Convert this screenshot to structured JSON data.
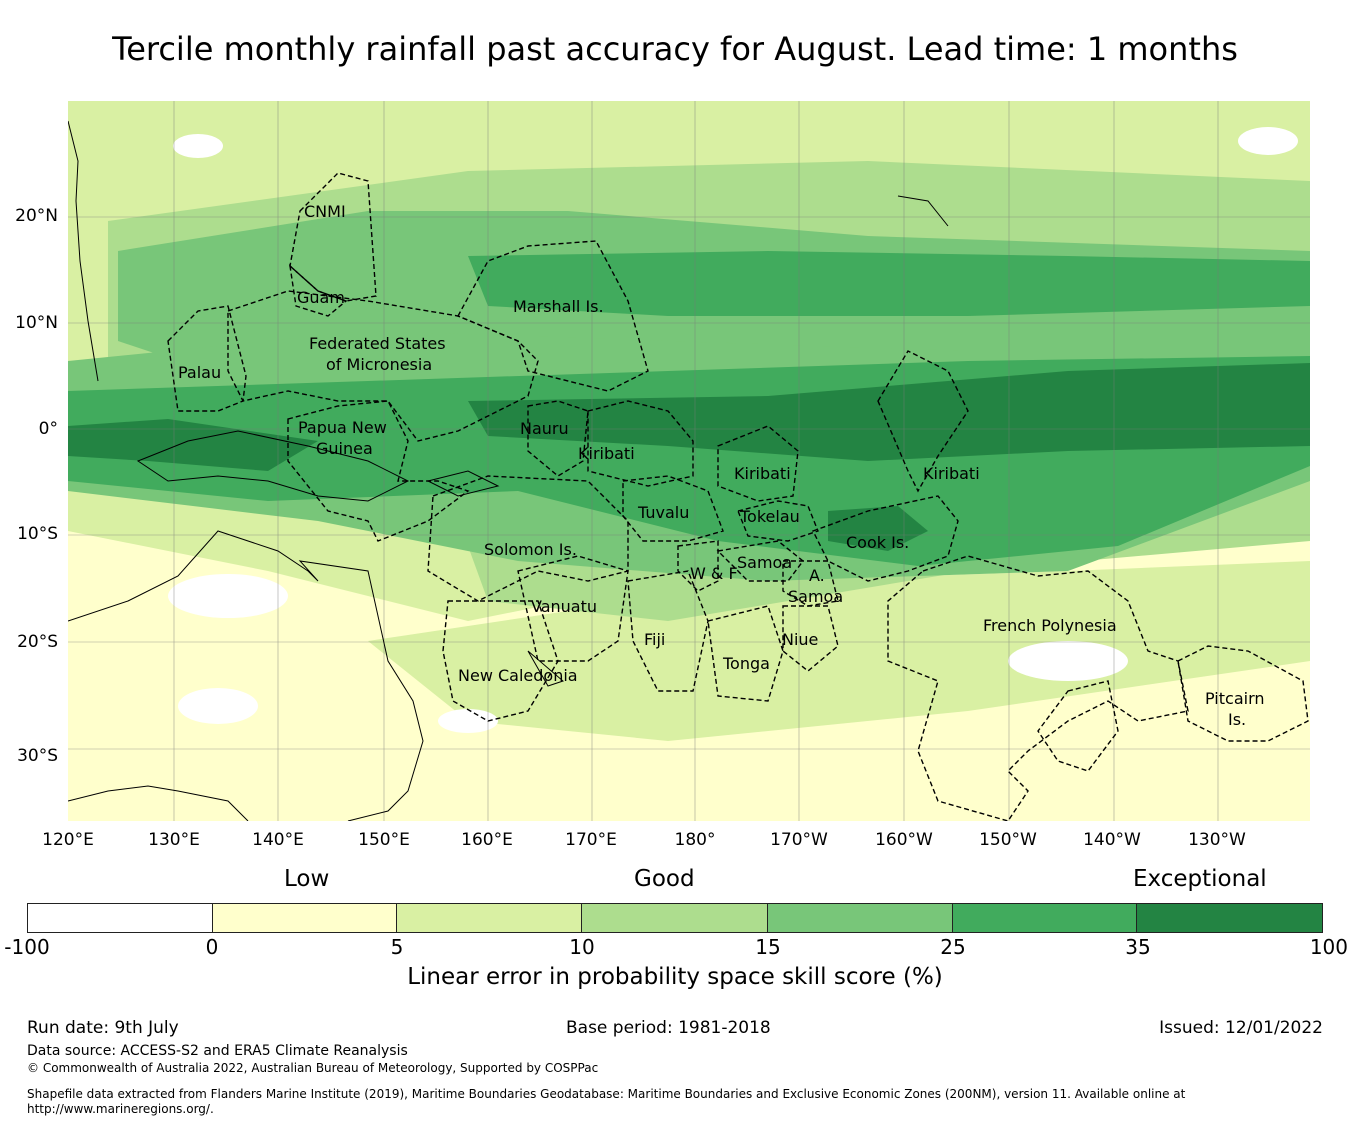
{
  "title": "Tercile monthly rainfall past accuracy for August. Lead time: 1 months",
  "map": {
    "lat_labels": [
      "20°N",
      "10°N",
      "0°",
      "10°S",
      "20°S",
      "30°S"
    ],
    "lon_labels": [
      "120°E",
      "130°E",
      "140°E",
      "150°E",
      "160°E",
      "170°E",
      "180°",
      "170°W",
      "160°W",
      "150°W",
      "140°W",
      "130°W"
    ],
    "regions": [
      {
        "name": "CNMI"
      },
      {
        "name": "Guam"
      },
      {
        "name": "Marshall Is."
      },
      {
        "name": "Federated States"
      },
      {
        "name": "of Micronesia"
      },
      {
        "name": "Palau"
      },
      {
        "name": "Papua New"
      },
      {
        "name": "Guinea"
      },
      {
        "name": "Nauru"
      },
      {
        "name": "Kiribati"
      },
      {
        "name": "Kiribati"
      },
      {
        "name": "Kiribati"
      },
      {
        "name": "Tuvalu"
      },
      {
        "name": "Tokelau"
      },
      {
        "name": "Cook Is."
      },
      {
        "name": "Solomon Is."
      },
      {
        "name": "Samoa"
      },
      {
        "name": "W & F"
      },
      {
        "name": "A."
      },
      {
        "name": "Samoa"
      },
      {
        "name": "Vanuatu"
      },
      {
        "name": "Fiji"
      },
      {
        "name": "Niue"
      },
      {
        "name": "Tonga"
      },
      {
        "name": "New Caledonia"
      },
      {
        "name": "French Polynesia"
      },
      {
        "name": "Pitcairn"
      },
      {
        "name": "Is."
      }
    ],
    "colors": {
      "c_neg": "#ffffff",
      "c0": "#ffffcc",
      "c5": "#d9f0a3",
      "c10": "#addd8e",
      "c15": "#78c679",
      "c25": "#41ab5d",
      "c35": "#238443"
    }
  },
  "legend": {
    "category_low": "Low",
    "category_good": "Good",
    "category_exceptional": "Exceptional",
    "ticks": [
      "-100",
      "0",
      "5",
      "10",
      "15",
      "25",
      "35",
      "100"
    ],
    "colors": [
      "#ffffff",
      "#ffffcc",
      "#d9f0a3",
      "#addd8e",
      "#78c679",
      "#41ab5d",
      "#238443"
    ],
    "label": "Linear error in probability space skill score (%)"
  },
  "footer": {
    "run_date": "Run date: 9th July",
    "base_period": "Base period: 1981-2018",
    "issued": "Issued: 12/01/2022",
    "data_source": "Data source: ACCESS-S2 and ERA5 Climate Reanalysis",
    "copyright": "© Commonwealth of Australia 2022, Australian Bureau of Meteorology, Supported by COSPPac",
    "shapefile_note_1": "Shapefile data extracted from Flanders Marine Institute (2019), Maritime Boundaries Geodatabase: Maritime Boundaries and Exclusive Economic Zones (200NM), version 11. Available online at",
    "shapefile_note_2": "http://www.marineregions.org/."
  }
}
